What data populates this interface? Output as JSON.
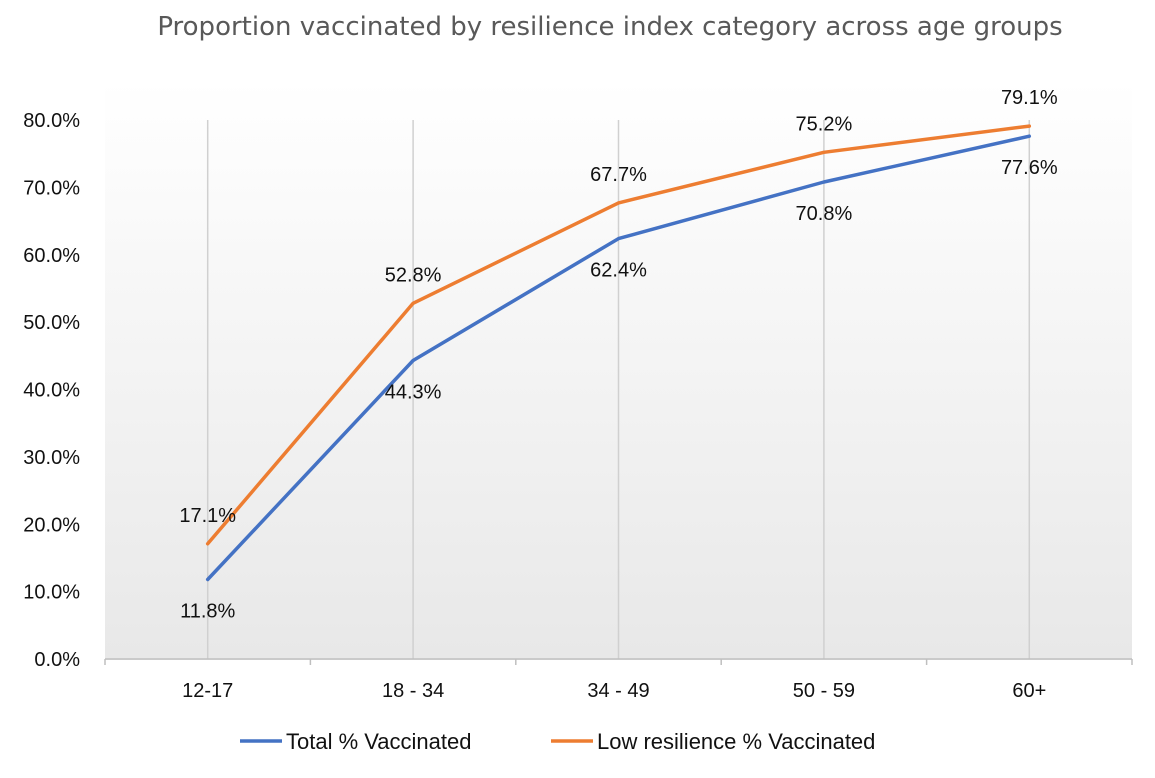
{
  "chart_data": {
    "type": "line",
    "title": "Proportion vaccinated by resilience index category across age groups",
    "xlabel": "",
    "ylabel": "",
    "categories": [
      "12-17",
      "18 - 34",
      "34 - 49",
      "50 - 59",
      "60+"
    ],
    "ylim": [
      0,
      80
    ],
    "y_ticks": [
      "0.0%",
      "10.0%",
      "20.0%",
      "30.0%",
      "40.0%",
      "50.0%",
      "60.0%",
      "70.0%",
      "80.0%"
    ],
    "grid": "vertical",
    "legend_position": "bottom",
    "series": [
      {
        "name": "Total % Vaccinated",
        "color": "#4472C4",
        "values": [
          11.8,
          44.3,
          62.4,
          70.8,
          77.6
        ],
        "labels": [
          "11.8%",
          "44.3%",
          "62.4%",
          "70.8%",
          "77.6%"
        ],
        "label_side": "below"
      },
      {
        "name": "Low resilience % Vaccinated",
        "color": "#ED7D31",
        "values": [
          17.1,
          52.8,
          67.7,
          75.2,
          79.1
        ],
        "labels": [
          "17.1%",
          "52.8%",
          "67.7%",
          "75.2%",
          "79.1%"
        ],
        "label_side": "above"
      }
    ]
  }
}
